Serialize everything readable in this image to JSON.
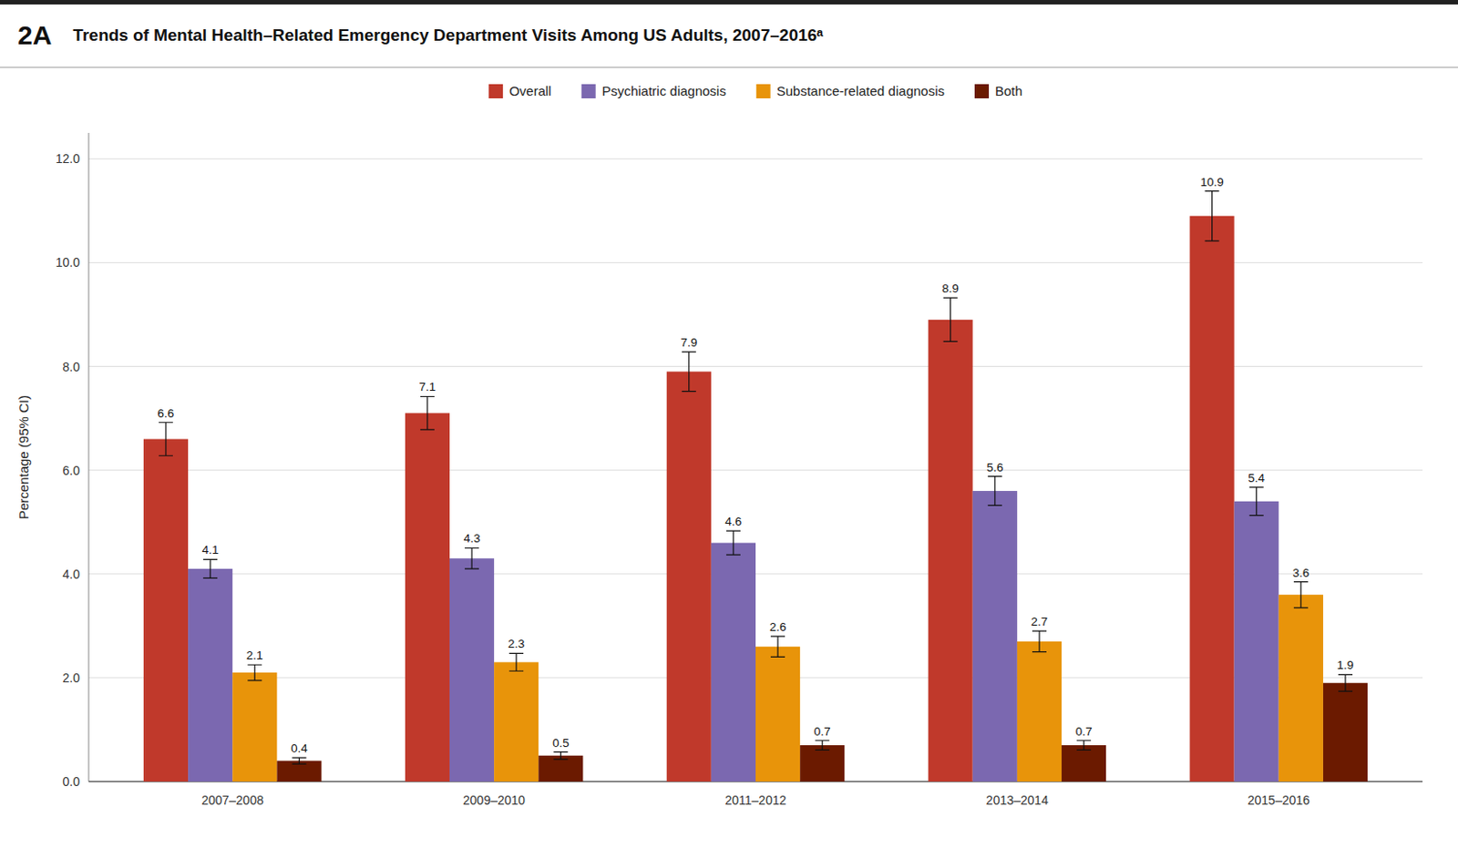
{
  "chart_data": {
    "type": "bar",
    "title": "Trends of Mental Health–Related Emergency Department Visits Among US Adults, 2007–2016ᵃ",
    "panel_label": "2A",
    "ylabel": "Percentage (95% CI)",
    "categories": [
      "2007–2008",
      "2009–2010",
      "2011–2012",
      "2013–2014",
      "2015–2016"
    ],
    "series": [
      {
        "name": "Overall",
        "color": "#C0392B",
        "values": [
          6.6,
          7.1,
          7.9,
          8.9,
          10.9
        ],
        "errors": [
          0.32,
          0.32,
          0.38,
          0.42,
          0.48
        ]
      },
      {
        "name": "Psychiatric diagnosis",
        "color": "#7B68B0",
        "values": [
          4.1,
          4.3,
          4.6,
          5.6,
          5.4
        ],
        "errors": [
          0.18,
          0.2,
          0.23,
          0.28,
          0.27
        ]
      },
      {
        "name": "Substance-related diagnosis",
        "color": "#E8940A",
        "values": [
          2.1,
          2.3,
          2.6,
          2.7,
          3.6
        ],
        "errors": [
          0.15,
          0.17,
          0.2,
          0.2,
          0.25
        ]
      },
      {
        "name": "Both",
        "color": "#6B1A00",
        "values": [
          0.4,
          0.5,
          0.7,
          0.7,
          1.9
        ],
        "errors": [
          0.06,
          0.07,
          0.09,
          0.09,
          0.16
        ]
      }
    ],
    "ylim": [
      0.0,
      12.5
    ],
    "yticks": [
      {
        "value": 0.0,
        "label": "0.0"
      },
      {
        "value": 2.0,
        "label": "2.0"
      },
      {
        "value": 4.0,
        "label": "4.0"
      },
      {
        "value": 6.0,
        "label": "6.0"
      },
      {
        "value": 8.0,
        "label": "8.0"
      },
      {
        "value": 10.0,
        "label": "10.0"
      },
      {
        "value": 12.0,
        "label": "12.0"
      }
    ],
    "grid": true,
    "legend": "top",
    "data_labels": true
  }
}
